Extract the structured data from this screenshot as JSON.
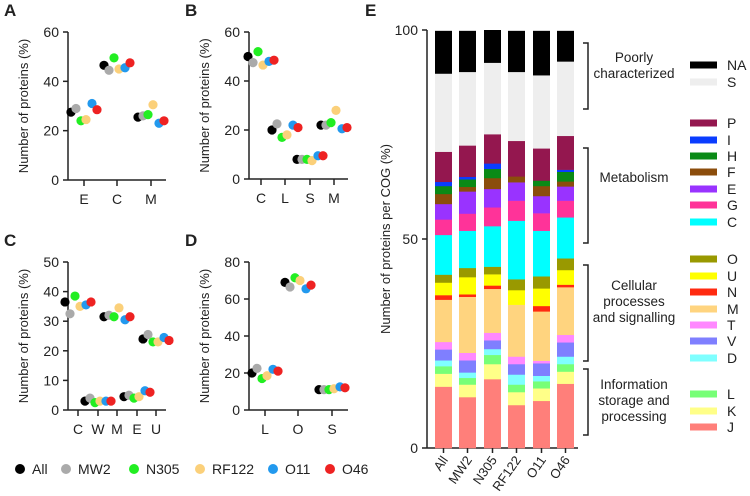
{
  "legend": {
    "series": [
      "All",
      "MW2",
      "N305",
      "RF122",
      "O11",
      "O46"
    ],
    "colors": [
      "#000000",
      "#aaaaaa",
      "#22ee22",
      "#fbd07a",
      "#2299ee",
      "#ee2222"
    ]
  },
  "chart_data": [
    {
      "panel": "A",
      "type": "scatter",
      "ylabel": "Number of proteins (%)",
      "ylim": [
        0,
        60
      ],
      "yticks": [
        0,
        20,
        40,
        60
      ],
      "categories": [
        "E",
        "C",
        "M"
      ],
      "series": [
        {
          "name": "All",
          "values": [
            27.5,
            46.5,
            25.5
          ]
        },
        {
          "name": "MW2",
          "values": [
            29,
            44.5,
            26
          ]
        },
        {
          "name": "N305",
          "values": [
            24,
            49.5,
            26.5
          ]
        },
        {
          "name": "RF122",
          "values": [
            24.5,
            45,
            30.5
          ]
        },
        {
          "name": "O11",
          "values": [
            31,
            45.5,
            23
          ]
        },
        {
          "name": "O46",
          "values": [
            28.5,
            47.5,
            24
          ]
        }
      ]
    },
    {
      "panel": "B",
      "type": "scatter",
      "ylabel": "Number of proteins (%)",
      "ylim": [
        0,
        60
      ],
      "yticks": [
        0,
        20,
        40,
        60
      ],
      "categories": [
        "C",
        "L",
        "S",
        "M"
      ],
      "series": [
        {
          "name": "All",
          "values": [
            50,
            20,
            8,
            22
          ]
        },
        {
          "name": "MW2",
          "values": [
            47.5,
            22.5,
            8,
            22
          ]
        },
        {
          "name": "N305",
          "values": [
            52,
            17,
            8,
            23
          ]
        },
        {
          "name": "RF122",
          "values": [
            46.5,
            18,
            7.5,
            28
          ]
        },
        {
          "name": "O11",
          "values": [
            48,
            22,
            9.5,
            20.5
          ]
        },
        {
          "name": "O46",
          "values": [
            48.5,
            21,
            9.5,
            21
          ]
        }
      ]
    },
    {
      "panel": "C",
      "type": "scatter",
      "ylabel": "Number of proteins (%)",
      "ylim": [
        0,
        50
      ],
      "yticks": [
        0,
        10,
        20,
        30,
        40,
        50
      ],
      "categories": [
        "C",
        "W",
        "M",
        "E",
        "U"
      ],
      "series": [
        {
          "name": "All",
          "values": [
            36.5,
            3,
            31.5,
            4.5,
            24
          ]
        },
        {
          "name": "MW2",
          "values": [
            32.5,
            4,
            32,
            5,
            25.5
          ]
        },
        {
          "name": "N305",
          "values": [
            38.5,
            2.5,
            31.5,
            4,
            23
          ]
        },
        {
          "name": "RF122",
          "values": [
            35,
            3,
            34.5,
            4.5,
            23
          ]
        },
        {
          "name": "O11",
          "values": [
            35.5,
            3,
            30.5,
            6.5,
            24.5
          ]
        },
        {
          "name": "O46",
          "values": [
            36.5,
            3,
            31.5,
            6,
            23.5
          ]
        }
      ]
    },
    {
      "panel": "D",
      "type": "scatter",
      "ylabel": "Number of proteins (%)",
      "ylim": [
        0,
        80
      ],
      "yticks": [
        0,
        20,
        40,
        60,
        80
      ],
      "categories": [
        "L",
        "O",
        "S"
      ],
      "series": [
        {
          "name": "All",
          "values": [
            20,
            69,
            11
          ]
        },
        {
          "name": "MW2",
          "values": [
            22.5,
            66.5,
            11
          ]
        },
        {
          "name": "N305",
          "values": [
            17,
            71.5,
            11
          ]
        },
        {
          "name": "RF122",
          "values": [
            18.5,
            70,
            11.5
          ]
        },
        {
          "name": "O11",
          "values": [
            22,
            65.5,
            12.5
          ]
        },
        {
          "name": "O46",
          "values": [
            21,
            67.5,
            12
          ]
        }
      ]
    },
    {
      "panel": "E",
      "type": "bar",
      "stacked": true,
      "ylabel": "Number of proteins per COG (%)",
      "ylim": [
        0,
        100
      ],
      "yticks": [
        0,
        50,
        100
      ],
      "categories": [
        "All",
        "MW2",
        "N305",
        "RF122",
        "O11",
        "O46"
      ],
      "stack_order_bottom_to_top": [
        "J",
        "K",
        "L",
        "D",
        "V",
        "T",
        "M",
        "N",
        "U",
        "O",
        "C",
        "G",
        "E",
        "F",
        "H",
        "I",
        "P",
        "S",
        "NA"
      ],
      "colors": {
        "NA": "#000000",
        "S": "#eeeeee",
        "P": "#94174f",
        "I": "#0a3cff",
        "H": "#0a8a16",
        "F": "#8b4d0c",
        "E": "#9933ff",
        "G": "#ff3399",
        "C": "#00ffff",
        "O": "#999900",
        "U": "#ffff00",
        "N": "#ff2a10",
        "M": "#ffd47f",
        "T": "#ff88ff",
        "V": "#7f7fff",
        "D": "#7fffff",
        "L": "#77ff77",
        "K": "#ffff88",
        "J": "#ff7f7a"
      },
      "series": [
        {
          "name": "NA",
          "values": [
            10.2,
            9.8,
            7.8,
            9.8,
            10.6,
            7.3
          ]
        },
        {
          "name": "S",
          "values": [
            18.7,
            17.6,
            17.1,
            16.5,
            17.5,
            17.8
          ]
        },
        {
          "name": "P",
          "values": [
            7.2,
            7.5,
            7.0,
            8.5,
            7.7,
            8.1
          ]
        },
        {
          "name": "I",
          "values": [
            1.0,
            0.6,
            1.3,
            0,
            0,
            0.5
          ]
        },
        {
          "name": "H",
          "values": [
            1.9,
            1.8,
            2.2,
            0,
            1.3,
            2.3
          ]
        },
        {
          "name": "F",
          "values": [
            2.4,
            1.1,
            2.6,
            1.4,
            2.4,
            1.2
          ]
        },
        {
          "name": "E",
          "values": [
            3.7,
            5.3,
            4.4,
            4.4,
            4.1,
            3.4
          ]
        },
        {
          "name": "G",
          "values": [
            3.7,
            4.1,
            4.5,
            4.8,
            4.2,
            4.0
          ]
        },
        {
          "name": "C",
          "values": [
            9.5,
            8.9,
            9.7,
            14.0,
            10.9,
            9.8
          ]
        },
        {
          "name": "O",
          "values": [
            1.9,
            2.2,
            1.8,
            2.6,
            2.9,
            2.8
          ]
        },
        {
          "name": "U",
          "values": [
            3.0,
            4.1,
            2.7,
            3.5,
            4.2,
            3.5
          ]
        },
        {
          "name": "N",
          "values": [
            1.1,
            0.6,
            0.8,
            0,
            1.3,
            0.6
          ]
        },
        {
          "name": "M",
          "values": [
            10.1,
            13.4,
            10.5,
            12.4,
            11.8,
            11.4
          ]
        },
        {
          "name": "T",
          "values": [
            1.8,
            1.8,
            1.8,
            1.8,
            0.6,
            1.8
          ]
        },
        {
          "name": "V",
          "values": [
            2.6,
            2.9,
            2.1,
            2.5,
            3.0,
            3.4
          ]
        },
        {
          "name": "D",
          "values": [
            1.4,
            1.3,
            1.4,
            2.4,
            1.3,
            1.8
          ]
        },
        {
          "name": "L",
          "values": [
            1.8,
            1.6,
            2.2,
            1.8,
            1.7,
            1.8
          ]
        },
        {
          "name": "K",
          "values": [
            3.1,
            3.0,
            3.6,
            3.1,
            3.0,
            2.9
          ]
        },
        {
          "name": "J",
          "values": [
            14.7,
            12.2,
            16.5,
            10.3,
            11.3,
            15.4
          ]
        }
      ],
      "groups": [
        {
          "label": [
            "Poorly",
            "characterized"
          ],
          "members": [
            "NA",
            "S"
          ]
        },
        {
          "label": [
            "Metabolism"
          ],
          "members": [
            "P",
            "I",
            "H",
            "F",
            "E",
            "G",
            "C"
          ]
        },
        {
          "label": [
            "Cellular",
            "processes",
            "and signalling"
          ],
          "members": [
            "O",
            "U",
            "N",
            "M",
            "T",
            "V",
            "D"
          ]
        },
        {
          "label": [
            "Information",
            "storage and",
            "processing"
          ],
          "members": [
            "L",
            "K",
            "J"
          ]
        }
      ]
    }
  ]
}
